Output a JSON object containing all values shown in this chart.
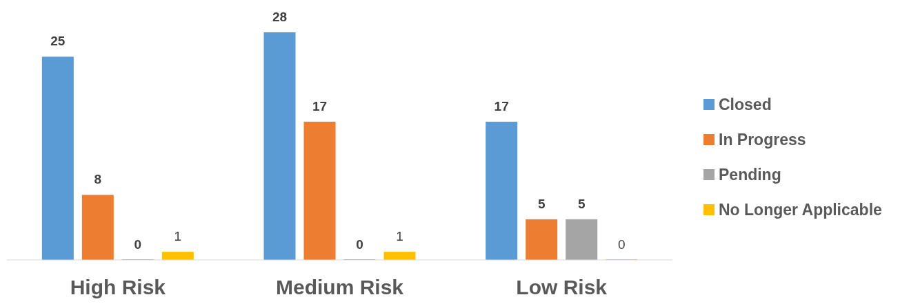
{
  "chart_data": {
    "type": "bar",
    "categories": [
      "High Risk",
      "Medium Risk",
      "Low Risk"
    ],
    "series": [
      {
        "name": "Closed",
        "color": "#5b9bd5",
        "values": [
          25,
          28,
          17
        ]
      },
      {
        "name": "In Progress",
        "color": "#ed7d31",
        "values": [
          8,
          17,
          5
        ]
      },
      {
        "name": "Pending",
        "color": "#a5a5a5",
        "values": [
          0,
          0,
          5
        ]
      },
      {
        "name": "No Longer Applicable",
        "color": "#ffc000",
        "values": [
          1,
          1,
          0
        ]
      }
    ],
    "data_labels": true,
    "legend": "right"
  }
}
